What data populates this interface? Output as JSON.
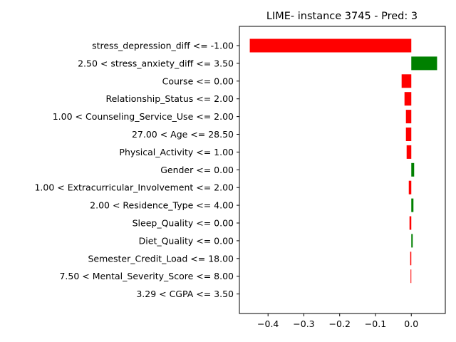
{
  "chart_data": {
    "type": "bar",
    "orientation": "horizontal",
    "title": "LIME- instance 3745 - Pred: 3",
    "xlabel": "",
    "ylabel": "",
    "xlim": [
      -0.48,
      0.095
    ],
    "xticks": [
      -0.4,
      -0.3,
      -0.2,
      -0.1,
      0.0
    ],
    "xtick_labels": [
      "−0.4",
      "−0.3",
      "−0.2",
      "−0.1",
      "0.0"
    ],
    "grid": false,
    "colors": {
      "positive": "#008000",
      "negative": "#ff0000"
    },
    "categories": [
      "stress_depression_diff <= -1.00",
      "2.50 < stress_anxiety_diff <= 3.50",
      "Course <= 0.00",
      "Relationship_Status <= 2.00",
      "1.00 < Counseling_Service_Use <= 2.00",
      "27.00 < Age <= 28.50",
      "Physical_Activity <= 1.00",
      "Gender <= 0.00",
      "1.00 < Extracurricular_Involvement <= 2.00",
      "2.00 < Residence_Type <= 4.00",
      "Sleep_Quality <= 0.00",
      "Diet_Quality <= 0.00",
      "Semester_Credit_Load <= 18.00",
      "7.50 < Mental_Severity_Score <= 8.00",
      "3.29 < CGPA <= 3.50"
    ],
    "values": [
      -0.451,
      0.072,
      -0.027,
      -0.019,
      -0.015,
      -0.015,
      -0.013,
      0.008,
      -0.007,
      0.006,
      -0.005,
      0.004,
      -0.003,
      -0.002,
      0.0
    ]
  }
}
